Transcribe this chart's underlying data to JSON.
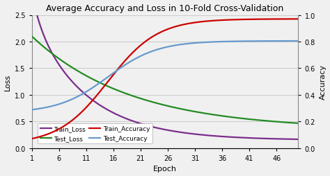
{
  "title": "Average Accuracy and Loss in 10-Fold Cross-Validation",
  "xlabel": "Epoch",
  "ylabel_left": "Loss",
  "ylabel_right": "Accuracy",
  "xlim": [
    1,
    50
  ],
  "ylim_left": [
    0,
    2.5
  ],
  "ylim_right": [
    0,
    1.0
  ],
  "xticks": [
    1,
    6,
    11,
    16,
    21,
    26,
    31,
    36,
    41,
    46
  ],
  "yticks_left": [
    0,
    0.5,
    1.0,
    1.5,
    2.0,
    2.5
  ],
  "yticks_right": [
    0,
    0.2,
    0.4,
    0.6,
    0.8,
    1.0
  ],
  "colors": {
    "train_loss": "#7B2D8B",
    "test_loss": "#228B22",
    "train_accuracy": "#CC0000",
    "test_accuracy": "#6699CC"
  },
  "legend": {
    "train_loss": "Train_Loss",
    "test_loss": "Test_Loss",
    "train_accuracy": "Train_Accuracy",
    "test_accuracy": "Test_Accuracy"
  },
  "background_color": "#F0F0F0",
  "grid_color": "#CCCCCC",
  "title_fontsize": 9,
  "label_fontsize": 8,
  "tick_fontsize": 7,
  "legend_fontsize": 6.5,
  "line_width": 1.6
}
